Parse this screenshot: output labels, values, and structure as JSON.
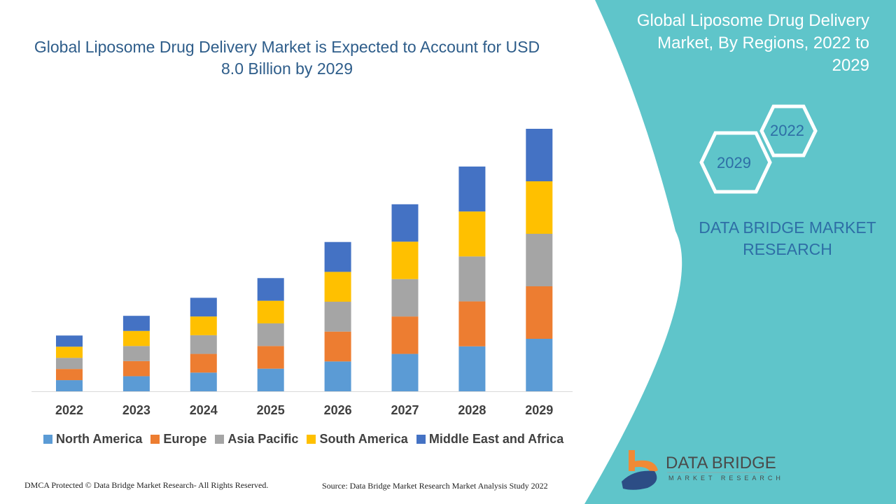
{
  "title": "Global Liposome Drug Delivery Market is Expected to Account for USD 8.0 Billion by 2029",
  "side_panel": {
    "title": "Global Liposome Drug Delivery Market, By Regions, 2022 to 2029",
    "hex_labels": [
      "2022",
      "2029"
    ],
    "brand": "DATA BRIDGE MARKET RESEARCH",
    "color": "#5fc5ca"
  },
  "logo": {
    "text": "DATA BRIDGE",
    "subtext": "MARKET RESEARCH"
  },
  "footer": {
    "left": "DMCA Protected © Data Bridge Market Research- All Rights Reserved.",
    "right": "Source: Data Bridge Market Research Market Analysis Study 2022"
  },
  "chart_data": {
    "type": "bar",
    "stacked": true,
    "categories": [
      "2022",
      "2023",
      "2024",
      "2025",
      "2026",
      "2027",
      "2028",
      "2029"
    ],
    "series": [
      {
        "name": "North America",
        "color": "#5b9bd5",
        "values": [
          0.34,
          0.46,
          0.57,
          0.69,
          0.91,
          1.14,
          1.37,
          1.6
        ]
      },
      {
        "name": "Europe",
        "color": "#ed7d31",
        "values": [
          0.34,
          0.46,
          0.57,
          0.69,
          0.91,
          1.14,
          1.37,
          1.6
        ]
      },
      {
        "name": "Asia Pacific",
        "color": "#a5a5a5",
        "values": [
          0.34,
          0.46,
          0.57,
          0.69,
          0.91,
          1.14,
          1.37,
          1.6
        ]
      },
      {
        "name": "South America",
        "color": "#ffc000",
        "values": [
          0.34,
          0.46,
          0.57,
          0.69,
          0.91,
          1.14,
          1.37,
          1.6
        ]
      },
      {
        "name": "Middle East and Africa",
        "color": "#4472c4",
        "values": [
          0.34,
          0.46,
          0.57,
          0.69,
          0.91,
          1.14,
          1.37,
          1.6
        ]
      }
    ],
    "ylim": [
      0,
      8.0
    ],
    "grid": false,
    "legend": "bottom"
  }
}
